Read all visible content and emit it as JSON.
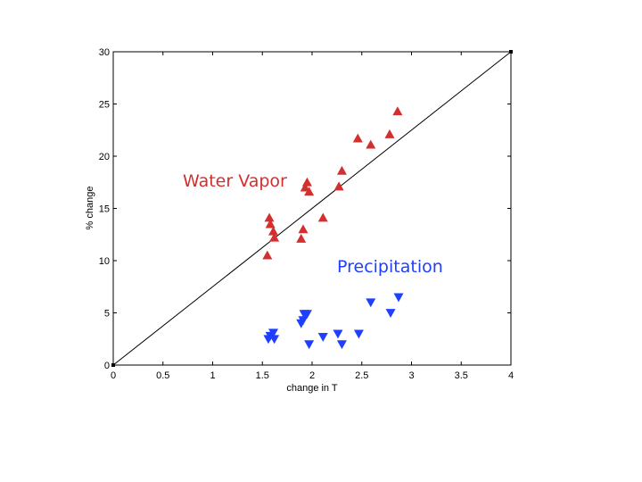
{
  "chart_data": {
    "type": "scatter",
    "xlabel": "change in T",
    "ylabel": "% change",
    "xlim": [
      0,
      4
    ],
    "ylim": [
      0,
      30
    ],
    "xticks": [
      0,
      0.5,
      1,
      1.5,
      2,
      2.5,
      3,
      3.5,
      4
    ],
    "xtick_labels": [
      "0",
      "0.5",
      "1",
      "1.5",
      "2",
      "2.5",
      "3",
      "3.5",
      "4"
    ],
    "yticks": [
      0,
      5,
      10,
      15,
      20,
      25,
      30
    ],
    "ytick_labels": [
      "0",
      "5",
      "10",
      "15",
      "20",
      "25",
      "30"
    ],
    "grid": false,
    "reference_line": {
      "x": [
        0,
        4
      ],
      "y": [
        0,
        30
      ],
      "color": "#000000"
    },
    "series": [
      {
        "name": "Water Vapor",
        "marker": "triangle-up",
        "color": "#d32f2f",
        "points": [
          [
            1.55,
            10.5
          ],
          [
            1.57,
            14.1
          ],
          [
            1.58,
            13.5
          ],
          [
            1.61,
            12.8
          ],
          [
            1.62,
            12.2
          ],
          [
            1.89,
            12.1
          ],
          [
            1.91,
            13.0
          ],
          [
            1.93,
            17.0
          ],
          [
            1.95,
            17.5
          ],
          [
            1.97,
            16.6
          ],
          [
            2.11,
            14.1
          ],
          [
            2.27,
            17.1
          ],
          [
            2.3,
            18.6
          ],
          [
            2.46,
            21.7
          ],
          [
            2.59,
            21.1
          ],
          [
            2.78,
            22.1
          ],
          [
            2.86,
            24.3
          ]
        ]
      },
      {
        "name": "Precipitation",
        "marker": "triangle-down",
        "color": "#1f3fff",
        "points": [
          [
            1.56,
            2.5
          ],
          [
            1.58,
            2.8
          ],
          [
            1.61,
            3.1
          ],
          [
            1.62,
            2.5
          ],
          [
            1.89,
            4.0
          ],
          [
            1.91,
            4.3
          ],
          [
            1.92,
            4.9
          ],
          [
            1.95,
            4.9
          ],
          [
            1.97,
            2.0
          ],
          [
            2.11,
            2.7
          ],
          [
            2.26,
            3.0
          ],
          [
            2.3,
            2.0
          ],
          [
            2.47,
            3.0
          ],
          [
            2.59,
            6.0
          ],
          [
            2.79,
            5.0
          ],
          [
            2.87,
            6.5
          ]
        ]
      }
    ],
    "annotations": [
      {
        "text": "Water Vapor",
        "color": "#d32f2f"
      },
      {
        "text": "Precipitation",
        "color": "#1f3fff"
      }
    ]
  }
}
